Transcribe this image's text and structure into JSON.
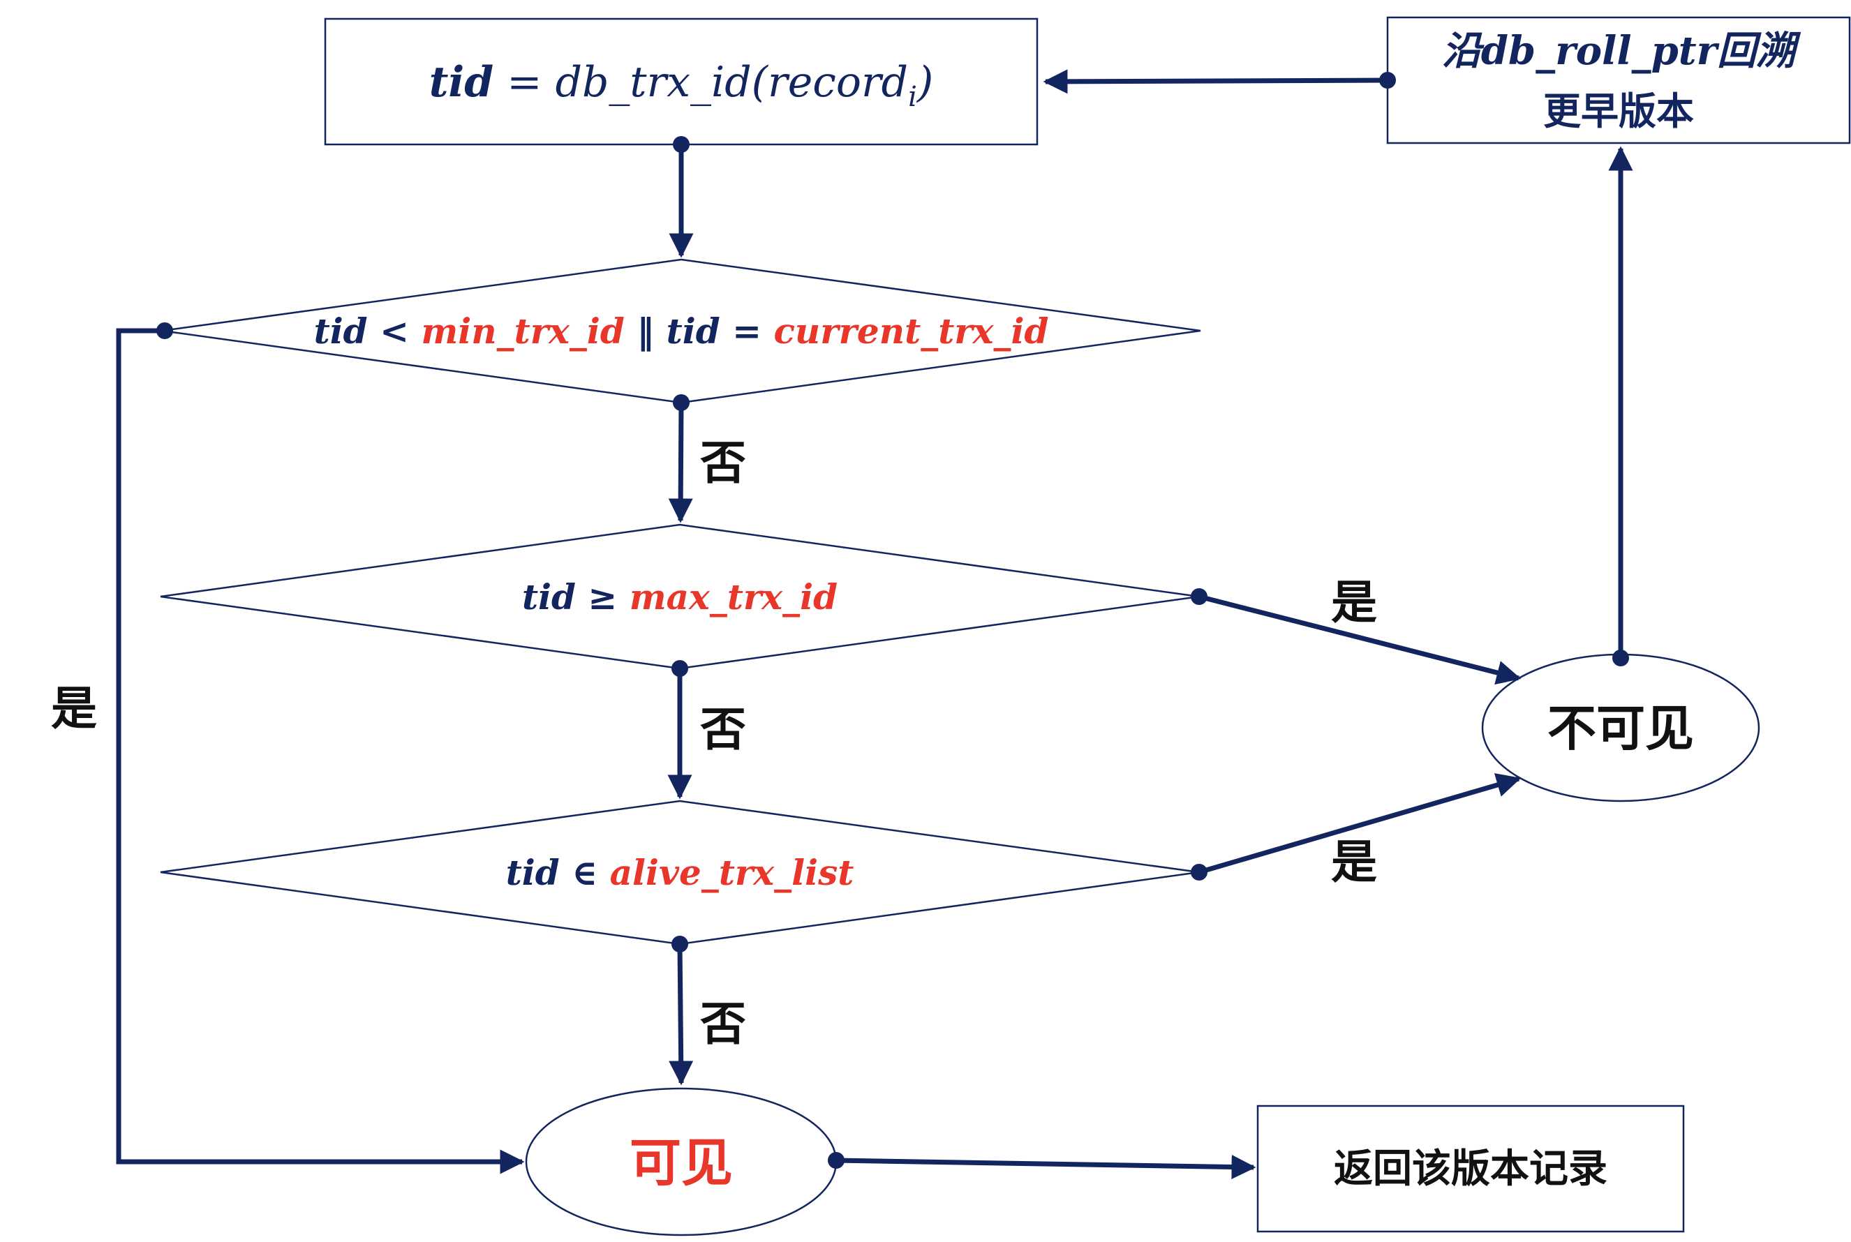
{
  "colors": {
    "navy": "#13255e",
    "red": "#e8362a",
    "black": "#111111",
    "box_border": "#13255e"
  },
  "nodes": {
    "start": {
      "tid": "tid",
      "eq": " = ",
      "func": "db_trx_id(record",
      "sub": "i",
      "close": ")"
    },
    "rollback": {
      "line1": "沿db_roll_ptr回溯",
      "line2": "更早版本"
    },
    "decision1": {
      "tid_a": "tid",
      "lt": " < ",
      "min": "min_trx_id",
      "or": " ‖ ",
      "tid_b": "tid",
      "eq": " = ",
      "current": "current_trx_id"
    },
    "decision2": {
      "tid": "tid",
      "ge": " ≥ ",
      "max": "max_trx_id"
    },
    "decision3": {
      "tid": "tid",
      "in": " ∈ ",
      "alive": "alive_trx_list"
    },
    "invisible": {
      "label": "不可见"
    },
    "visible": {
      "label": "可见"
    },
    "return": {
      "label": "返回该版本记录"
    }
  },
  "edge_labels": {
    "no1": "否",
    "no2": "否",
    "no3": "否",
    "yes_left": "是",
    "yes_d2": "是",
    "yes_d3": "是"
  }
}
